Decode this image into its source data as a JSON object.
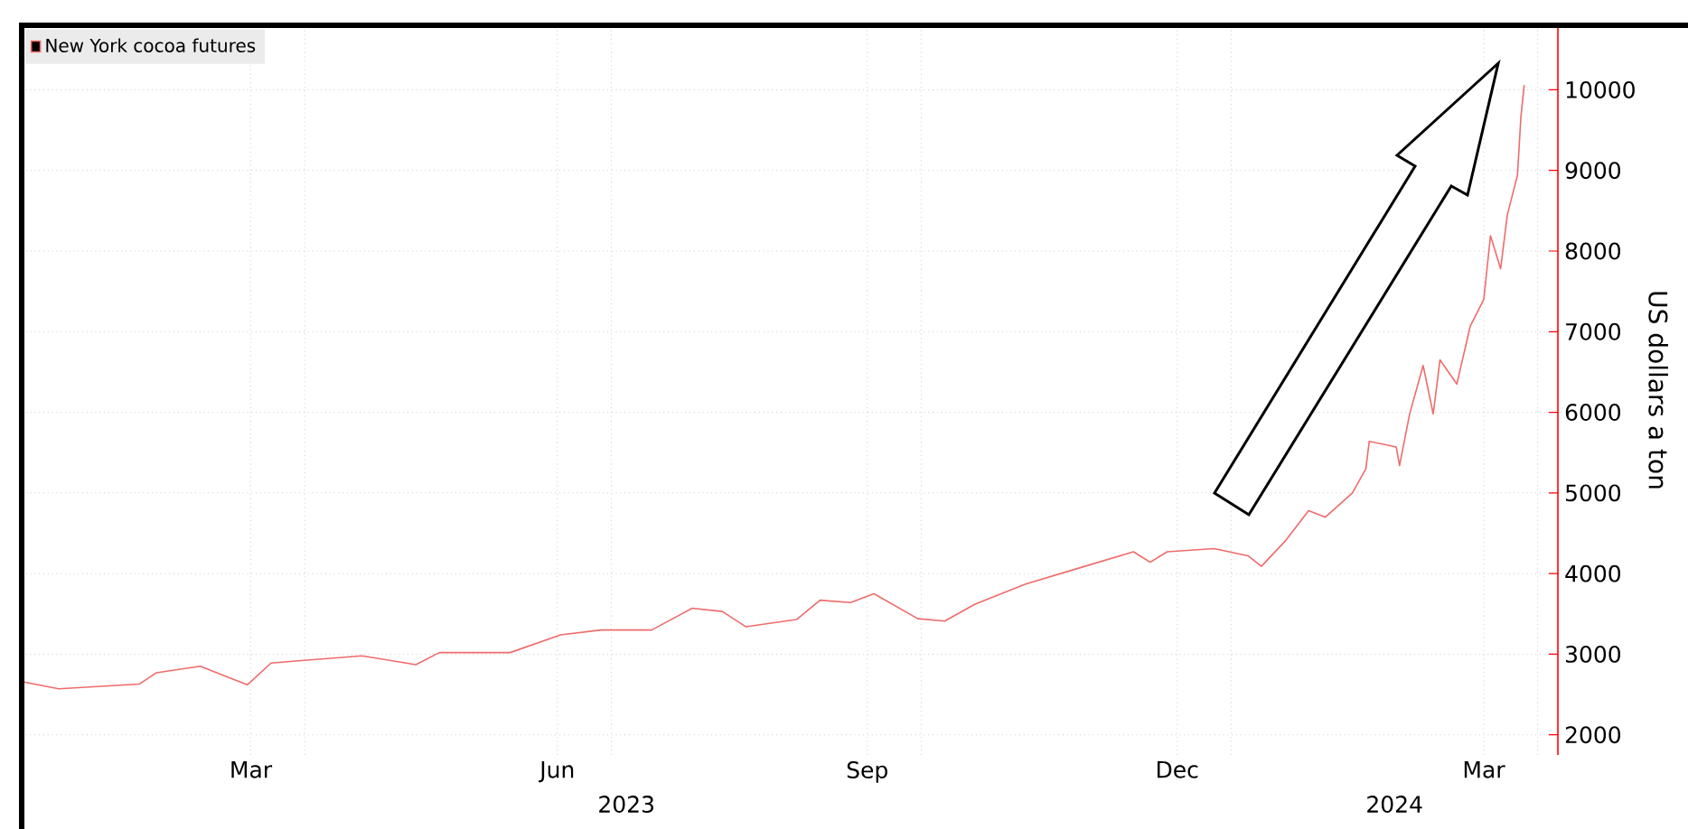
{
  "chart_data": {
    "type": "line",
    "ylabel": "US dollars a ton",
    "x": [
      "2023-01-07",
      "2023-01-18",
      "2023-02-11",
      "2023-02-16",
      "2023-03-01",
      "2023-03-15",
      "2023-03-22",
      "2023-03-31",
      "2023-04-18",
      "2023-05-04",
      "2023-05-11",
      "2023-06-01",
      "2023-06-16",
      "2023-06-28",
      "2023-07-13",
      "2023-07-25",
      "2023-08-03",
      "2023-08-10",
      "2023-08-25",
      "2023-09-01",
      "2023-09-10",
      "2023-09-17",
      "2023-09-30",
      "2023-10-08",
      "2023-10-17",
      "2023-11-01",
      "2023-11-17",
      "2023-12-03",
      "2023-12-08",
      "2023-12-13",
      "2023-12-27",
      "2024-01-06",
      "2024-01-10",
      "2024-01-17",
      "2024-01-24",
      "2024-01-29",
      "2024-02-06",
      "2024-02-10",
      "2024-02-11",
      "2024-02-19",
      "2024-02-20",
      "2024-02-23",
      "2024-02-27",
      "2024-03-01",
      "2024-03-03",
      "2024-03-08",
      "2024-03-12",
      "2024-03-16",
      "2024-03-18",
      "2024-03-21",
      "2024-03-23",
      "2024-03-26",
      "2024-03-27",
      "2024-03-28"
    ],
    "series": [
      {
        "name": "New York cocoa futures",
        "color": "#ef6b6b",
        "values": [
          2660,
          2570,
          2630,
          2770,
          2850,
          2620,
          2890,
          2920,
          2980,
          2870,
          3020,
          3020,
          3240,
          3300,
          3300,
          3570,
          3530,
          3340,
          3430,
          3670,
          3640,
          3750,
          3440,
          3410,
          3620,
          3870,
          4070,
          4270,
          4140,
          4270,
          4310,
          4220,
          4090,
          4400,
          4780,
          4700,
          5000,
          5300,
          5640,
          5570,
          5340,
          5980,
          6580,
          5980,
          6650,
          6350,
          7070,
          7400,
          8190,
          7780,
          8450,
          8940,
          9650,
          10060
        ]
      }
    ],
    "xlim": [
      "2023-01-07",
      "2024-04-07"
    ],
    "xticks": [
      {
        "value": "2023-03-16",
        "label": "Mar"
      },
      {
        "value": "2023-04-01",
        "label": null
      },
      {
        "value": "2023-06-15",
        "label": "Jun"
      },
      {
        "value": "2023-07-01",
        "label": null
      },
      {
        "value": "2023-09-15",
        "label": "Sep"
      },
      {
        "value": "2023-10-01",
        "label": null
      },
      {
        "value": "2023-12-16",
        "label": "Dec"
      },
      {
        "value": "2024-01-01",
        "label": null
      },
      {
        "value": "2024-03-16",
        "label": "Mar"
      },
      {
        "value": "2024-04-01",
        "label": null
      }
    ],
    "ylim": [
      1750,
      10800
    ],
    "yticks": [
      2000,
      3000,
      4000,
      5000,
      6000,
      7000,
      8000,
      9000,
      10000
    ],
    "annotations": [
      "2023",
      "2024"
    ],
    "grid": true,
    "legend": "top left",
    "line_style": "solid"
  }
}
